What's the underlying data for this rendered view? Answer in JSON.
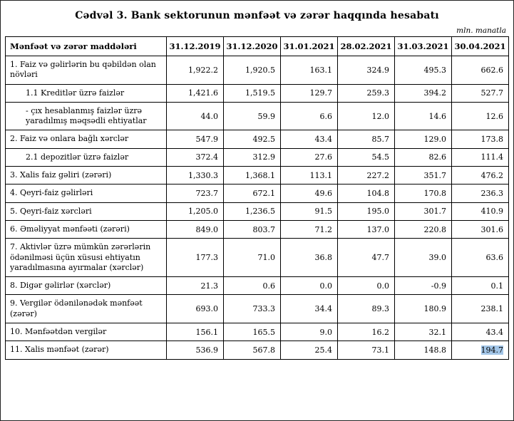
{
  "title": "Cədvəl 3. Bank sektorunun mənfəət və zərər haqqında hesabatı",
  "unit_note": "mln. manatla",
  "colors": {
    "highlight": "#a3c6e8",
    "border": "#000000"
  },
  "table": {
    "columns": [
      "Mənfəət və zərər maddələri",
      "31.12.2019",
      "31.12.2020",
      "31.01.2021",
      "28.02.2021",
      "31.03.2021",
      "30.04.2021"
    ],
    "rows": [
      {
        "label": "1. Faiz və gəlirlərin bu qəbildən olan növləri",
        "indent": 0,
        "values": [
          "1,922.2",
          "1,920.5",
          "163.1",
          "324.9",
          "495.3",
          "662.6"
        ]
      },
      {
        "label": "1.1 Kreditlər üzrə faizlər",
        "indent": 1,
        "values": [
          "1,421.6",
          "1,519.5",
          "129.7",
          "259.3",
          "394.2",
          "527.7"
        ]
      },
      {
        "label": "-  çıx hesablanmış faizlər üzrə yaradılmış məqsədli ehtiyatlar",
        "indent": 1,
        "values": [
          "44.0",
          "59.9",
          "6.6",
          "12.0",
          "14.6",
          "12.6"
        ]
      },
      {
        "label": "2. Faiz və onlara bağlı xərclər",
        "indent": 0,
        "values": [
          "547.9",
          "492.5",
          "43.4",
          "85.7",
          "129.0",
          "173.8"
        ]
      },
      {
        "label": "2.1 depozitlər üzrə faizlər",
        "indent": 1,
        "values": [
          "372.4",
          "312.9",
          "27.6",
          "54.5",
          "82.6",
          "111.4"
        ]
      },
      {
        "label": "3. Xalis faiz gəliri (zərəri)",
        "indent": 0,
        "values": [
          "1,330.3",
          "1,368.1",
          "113.1",
          "227.2",
          "351.7",
          "476.2"
        ]
      },
      {
        "label": "4. Qeyri-faiz gəlirləri",
        "indent": 0,
        "values": [
          "723.7",
          "672.1",
          "49.6",
          "104.8",
          "170.8",
          "236.3"
        ]
      },
      {
        "label": "5. Qeyri-faiz xərcləri",
        "indent": 0,
        "values": [
          "1,205.0",
          "1,236.5",
          "91.5",
          "195.0",
          "301.7",
          "410.9"
        ]
      },
      {
        "label": "6. Əməliyyat mənfəəti (zərəri)",
        "indent": 0,
        "values": [
          "849.0",
          "803.7",
          "71.2",
          "137.0",
          "220.8",
          "301.6"
        ]
      },
      {
        "label": "7. Aktivlər üzrə mümkün zərərlərin ödənilməsi üçün xüsusi ehtiyatın yaradılmasına ayırmalar (xərclər)",
        "indent": 0,
        "values": [
          "177.3",
          "71.0",
          "36.8",
          "47.7",
          "39.0",
          "63.6"
        ]
      },
      {
        "label": "8. Digər gəlirlər (xərclər)",
        "indent": 0,
        "values": [
          "21.3",
          "0.6",
          "0.0",
          "0.0",
          "-0.9",
          "0.1"
        ]
      },
      {
        "label": "9. Vergilər ödənilənədək mənfəət (zərər)",
        "indent": 0,
        "values": [
          "693.0",
          "733.3",
          "34.4",
          "89.3",
          "180.9",
          "238.1"
        ]
      },
      {
        "label": "10. Mənfəətdən vergilər",
        "indent": 0,
        "values": [
          "156.1",
          "165.5",
          "9.0",
          "16.2",
          "32.1",
          "43.4"
        ]
      },
      {
        "label": "11. Xalis mənfəət (zərər)",
        "indent": 0,
        "values": [
          "536.9",
          "567.8",
          "25.4",
          "73.1",
          "148.8",
          "194.7"
        ],
        "highlight_col": 5
      }
    ]
  }
}
